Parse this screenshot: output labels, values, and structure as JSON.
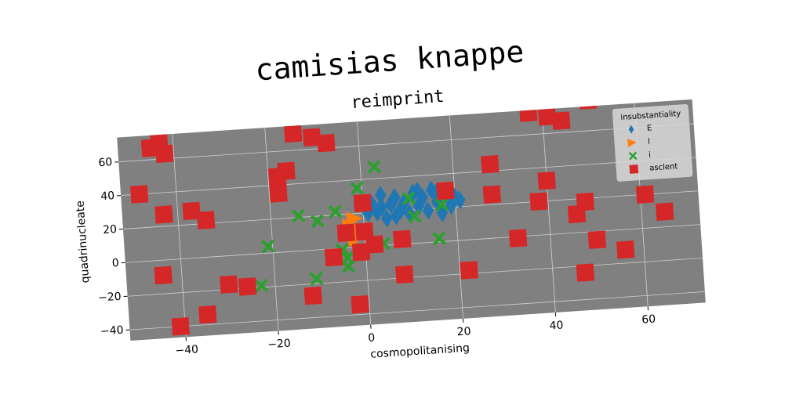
{
  "chart_data": {
    "type": "scatter",
    "title": "camisias knappe",
    "subtitle": "reimprint",
    "xlabel": "cosmopolitanising",
    "ylabel": "quadrinucleate",
    "xlim": [
      -52,
      72.5
    ],
    "ylim": [
      -46.5,
      74.5
    ],
    "xticks": [
      {
        "value": -40,
        "label": "−40"
      },
      {
        "value": -20,
        "label": "−20"
      },
      0,
      20,
      40,
      60
    ],
    "yticks": [
      {
        "value": -40,
        "label": "−40"
      },
      {
        "value": -20,
        "label": "−20"
      },
      0,
      20,
      40,
      60
    ],
    "grid": true,
    "legend_title": "insubstantiality",
    "legend": "upper right",
    "series": [
      {
        "name": "E",
        "color": "#1f77b4",
        "marker": "diamond",
        "x": [
          2,
          3,
          4,
          5,
          6,
          7,
          8,
          9,
          10,
          11,
          12,
          13,
          14,
          15,
          16,
          17,
          18,
          19,
          20,
          21,
          1,
          4,
          7,
          12,
          16
        ],
        "values": [
          25,
          20,
          30,
          16,
          24,
          28,
          20,
          25,
          18,
          30,
          22,
          27,
          19,
          31,
          24,
          17,
          28,
          21,
          26,
          24,
          20,
          23,
          17,
          31,
          29
        ]
      },
      {
        "name": "l",
        "color": "#ff7f0e",
        "marker": "triangle-right",
        "x": [
          -2,
          -3,
          -2,
          -1
        ],
        "values": [
          17,
          13,
          5,
          10
        ]
      },
      {
        "name": "i",
        "color": "#2ca02c",
        "marker": "x",
        "x": [
          -21,
          -23,
          -14,
          -10,
          -6,
          -5,
          -4,
          -4,
          -11,
          -1,
          3,
          4,
          10,
          11,
          17,
          16
        ],
        "values": [
          4,
          -19,
          21,
          17,
          22,
          -1,
          -6,
          -11,
          -17,
          35,
          47,
          1,
          27,
          16,
          22,
          2
        ]
      },
      {
        "name": "asclent",
        "color": "#d62728",
        "marker": "square",
        "x": [
          -45,
          -43,
          -42,
          -48,
          -43,
          -37,
          -34,
          -14,
          -10,
          -7,
          -18,
          -16,
          -18,
          -44,
          -41,
          -35,
          -30,
          -26,
          -12,
          -7,
          -4,
          -2,
          -1,
          0,
          0,
          2,
          8,
          8,
          18,
          22,
          28,
          28,
          33,
          38,
          40,
          37,
          41,
          44,
          48,
          46,
          47,
          50,
          50,
          56,
          61,
          65
        ],
        "values": [
          67,
          70,
          63,
          40,
          27,
          28,
          22,
          70,
          67,
          63,
          45,
          48,
          35,
          -9,
          -40,
          -34,
          -17,
          -19,
          -27,
          -5,
          9,
          -34,
          -3,
          26,
          9,
          1,
          3,
          -18,
          30,
          -18,
          44,
          26,
          -1,
          20,
          32,
          73,
          70,
          67,
          18,
          11,
          -24,
          -5,
          78,
          -12,
          20,
          9
        ]
      }
    ]
  }
}
